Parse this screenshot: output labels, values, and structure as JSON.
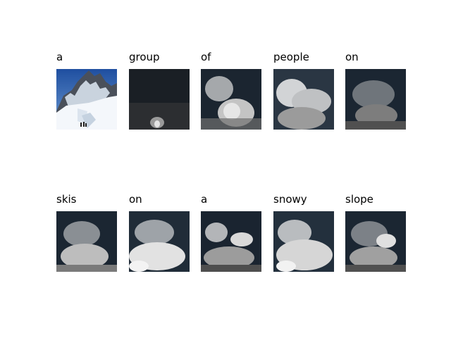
{
  "figure": {
    "rows": [
      {
        "panels": [
          {
            "word": "a",
            "kind": "original"
          },
          {
            "word": "group",
            "kind": "attention",
            "attention": "low-center"
          },
          {
            "word": "of",
            "kind": "attention",
            "attention": "left-glow"
          },
          {
            "word": "people",
            "kind": "attention",
            "attention": "broad"
          },
          {
            "word": "on",
            "kind": "attention",
            "attention": "dim"
          }
        ]
      },
      {
        "panels": [
          {
            "word": "skis",
            "kind": "attention",
            "attention": "lower"
          },
          {
            "word": "on",
            "kind": "attention",
            "attention": "lower-bright"
          },
          {
            "word": "a",
            "kind": "attention",
            "attention": "mid"
          },
          {
            "word": "snowy",
            "kind": "attention",
            "attention": "bright"
          },
          {
            "word": "slope",
            "kind": "attention",
            "attention": "right-slope"
          }
        ]
      }
    ],
    "colors": {
      "sky_top": "#1f4fa0",
      "sky_bottom": "#6d9bd3",
      "snow": "#f4f7fb",
      "rock": "#3a3f48",
      "attention_dark": "#0c1520"
    }
  }
}
